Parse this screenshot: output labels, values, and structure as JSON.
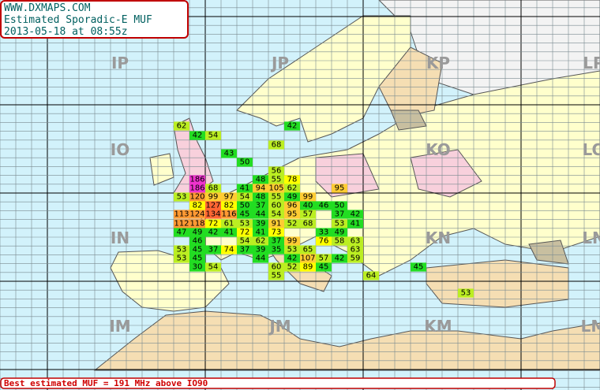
{
  "header": {
    "site": "WWW.DXMAPS.COM",
    "title": "Estimated Sporadic-E MUF",
    "timestamp": "2013-05-18 at 08:55z"
  },
  "fields": [
    "IP",
    "JP",
    "KP",
    "LP",
    "IO",
    "KO",
    "LO",
    "IN",
    "KN",
    "LN",
    "IM",
    "JM",
    "KM",
    "LM"
  ],
  "muf_cells": [
    62,
    42,
    54,
    42,
    68,
    43,
    50,
    56,
    186,
    48,
    55,
    78,
    186,
    68,
    41,
    94,
    105,
    62,
    95,
    53,
    120,
    99,
    97,
    54,
    48,
    55,
    49,
    99,
    82,
    127,
    82,
    50,
    37,
    60,
    96,
    40,
    46,
    50,
    113,
    124,
    134,
    116,
    45,
    44,
    54,
    95,
    57,
    37,
    42,
    112,
    118,
    72,
    61,
    53,
    39,
    91,
    52,
    68,
    53,
    41,
    47,
    49,
    42,
    41,
    72,
    41,
    73,
    33,
    49,
    46,
    54,
    62,
    37,
    99,
    76,
    58,
    63,
    53,
    45,
    37,
    74,
    37,
    39,
    35,
    53,
    65,
    63,
    53,
    45,
    44,
    42,
    107,
    57,
    42,
    59,
    30,
    54,
    60,
    52,
    89,
    45,
    45,
    55,
    64,
    53
  ],
  "footer": "Best estimated MUF = 191 MHz above IO90"
}
